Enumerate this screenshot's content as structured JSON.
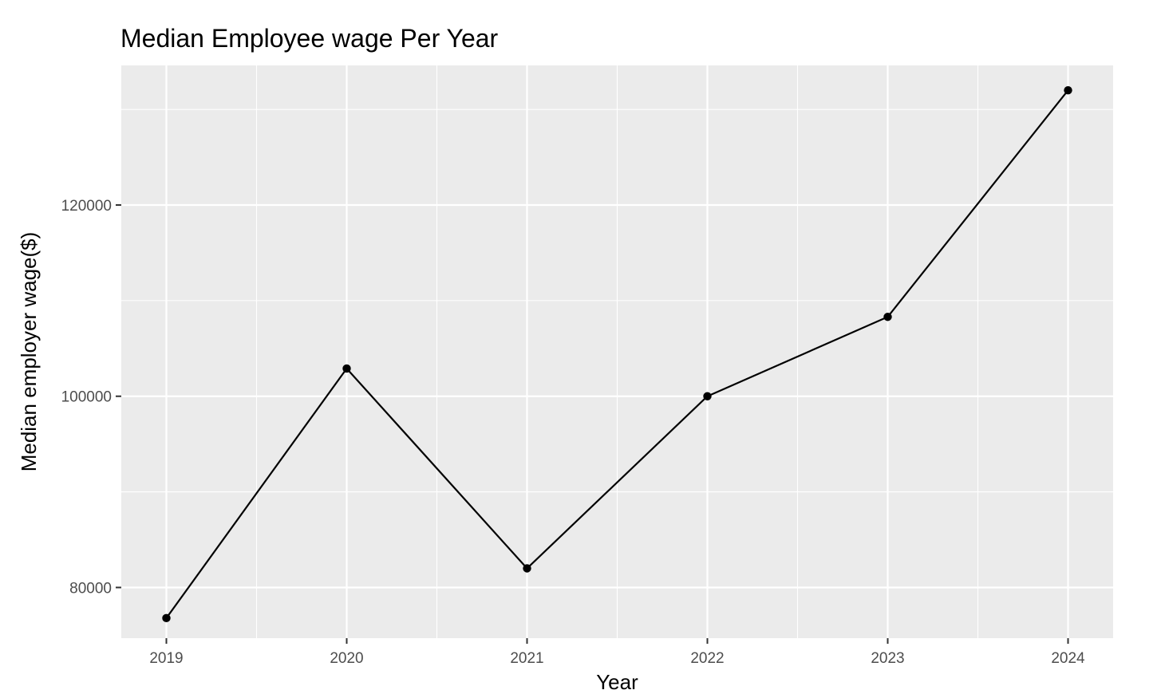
{
  "chart_data": {
    "type": "line",
    "title": "Median Employee wage Per Year",
    "xlabel": "Year",
    "ylabel": "Median employer wage($)",
    "x": [
      2019,
      2020,
      2021,
      2022,
      2023,
      2024
    ],
    "x_tick_labels": [
      "2019",
      "2020",
      "2021",
      "2022",
      "2023",
      "2024"
    ],
    "values": [
      76800,
      102900,
      82000,
      100000,
      108300,
      132000
    ],
    "y_ticks": [
      80000,
      100000,
      120000
    ],
    "y_tick_labels": [
      "80000",
      "100000",
      "120000"
    ],
    "ylim": [
      74700,
      134600
    ],
    "xlim": [
      2018.75,
      2024.25
    ],
    "grid": true,
    "series_color": "#000000",
    "panel_color": "#ebebeb",
    "grid_color": "#ffffff"
  }
}
